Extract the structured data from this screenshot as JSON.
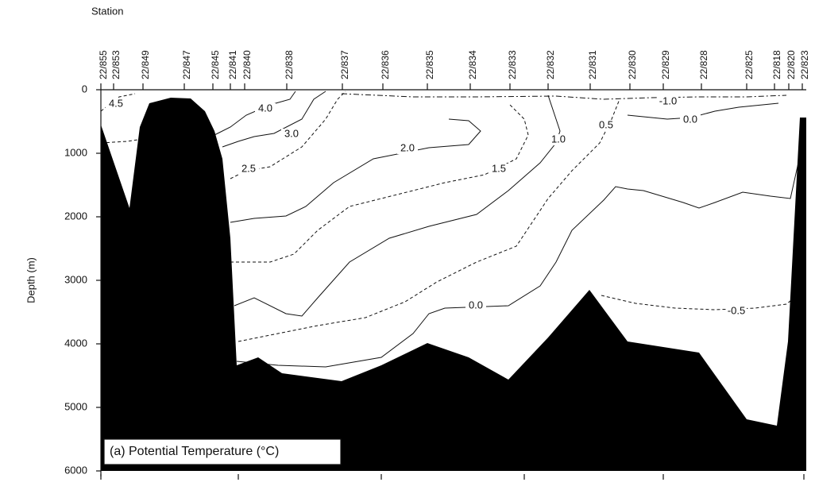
{
  "chart_data": {
    "type": "contour",
    "x_axis_label": "Station",
    "y_axis_label": "Depth (m)",
    "annotation": "(a) Potential Temperature (°C)",
    "categories": [
      "22/855",
      "22/853",
      "22/849",
      "22/847",
      "22/845",
      "22/841",
      "22/840",
      "22/838",
      "22/837",
      "22/836",
      "22/835",
      "22/834",
      "22/833",
      "22/832",
      "22/831",
      "22/830",
      "22/829",
      "22/828",
      "22/825",
      "22/818",
      "22/820",
      "22/823"
    ],
    "ylim": [
      0,
      6000
    ],
    "yticks": [
      0,
      1000,
      2000,
      3000,
      4000,
      5000,
      6000
    ],
    "y_inverted": true,
    "contour_labels": [
      {
        "value": 4.5,
        "label": "4.5"
      },
      {
        "value": 4.0,
        "label": "4.0"
      },
      {
        "value": 3.0,
        "label": "3.0"
      },
      {
        "value": 2.5,
        "label": "2.5"
      },
      {
        "value": 2.0,
        "label": "2.0"
      },
      {
        "value": 1.5,
        "label": "1.5"
      },
      {
        "value": 1.0,
        "label": "1.0"
      },
      {
        "value": 0.5,
        "label": "0.5"
      },
      {
        "value": 0.0,
        "label": "0.0"
      },
      {
        "value": -1.0,
        "label": "-1.0"
      },
      {
        "value": 0.0,
        "label": "0.0"
      },
      {
        "value": -0.5,
        "label": "-0.5"
      }
    ]
  }
}
